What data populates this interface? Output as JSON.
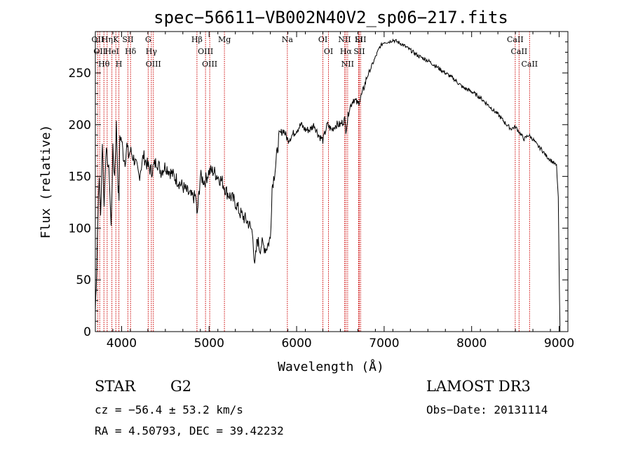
{
  "chart_data": {
    "type": "line",
    "title": "spec−56611−VB002N40V2_sp06−217.fits",
    "xlabel": "Wavelength (Å)",
    "ylabel": "Flux (relative)",
    "xlim": [
      3700,
      9100
    ],
    "ylim": [
      0,
      290
    ],
    "xticks": [
      4000,
      5000,
      6000,
      7000,
      8000,
      9000
    ],
    "yticks": [
      0,
      50,
      100,
      150,
      200,
      250
    ],
    "grid": false,
    "series": [
      {
        "x": [
          3700,
          3715,
          3730,
          3745,
          3760,
          3780,
          3800,
          3820,
          3840,
          3860,
          3880,
          3900,
          3920,
          3940,
          3960,
          3970,
          3980,
          4000,
          4020,
          4040,
          4060,
          4080,
          4100,
          4150,
          4200,
          4250,
          4300,
          4340,
          4400,
          4450,
          4500,
          4550,
          4600,
          4650,
          4700,
          4750,
          4800,
          4850,
          4861,
          4900,
          4950,
          5000,
          5050,
          5100,
          5150,
          5200,
          5250,
          5300,
          5350,
          5400,
          5450,
          5500,
          5520,
          5550,
          5580,
          5600,
          5650,
          5700,
          5720,
          5760,
          5800,
          5850,
          5900,
          5950,
          6000,
          6050,
          6100,
          6150,
          6200,
          6250,
          6300,
          6350,
          6400,
          6450,
          6500,
          6550,
          6563,
          6600,
          6650,
          6700,
          6750,
          6800,
          6850,
          6900,
          6950,
          7000,
          7050,
          7100,
          7150,
          7200,
          7250,
          7300,
          7400,
          7500,
          7600,
          7700,
          7800,
          7900,
          8000,
          8100,
          8200,
          8300,
          8400,
          8450,
          8500,
          8550,
          8600,
          8650,
          8700,
          8750,
          8800,
          8850,
          8900,
          8950,
          8970,
          8990,
          9000,
          9010
        ],
        "y": [
          20,
          60,
          115,
          150,
          110,
          185,
          120,
          175,
          165,
          150,
          100,
          175,
          150,
          200,
          140,
          130,
          190,
          185,
          170,
          165,
          180,
          170,
          175,
          165,
          150,
          170,
          160,
          155,
          165,
          155,
          160,
          155,
          150,
          145,
          140,
          135,
          130,
          130,
          110,
          150,
          145,
          155,
          155,
          150,
          145,
          135,
          130,
          125,
          115,
          110,
          105,
          95,
          60,
          90,
          80,
          85,
          80,
          90,
          140,
          160,
          190,
          195,
          185,
          190,
          195,
          200,
          195,
          195,
          200,
          190,
          185,
          200,
          195,
          200,
          200,
          205,
          195,
          215,
          225,
          220,
          230,
          245,
          255,
          265,
          275,
          280,
          280,
          282,
          280,
          278,
          275,
          272,
          266,
          262,
          256,
          250,
          244,
          236,
          232,
          226,
          218,
          210,
          200,
          196,
          198,
          192,
          186,
          190,
          186,
          180,
          176,
          170,
          166,
          162,
          160,
          130,
          60,
          0
        ]
      }
    ],
    "spectral_lines": [
      {
        "wavelength": 3727,
        "label": "OII"
      },
      {
        "wavelength": 3750,
        "label": "OII"
      },
      {
        "wavelength": 3798,
        "label": "Hθ"
      },
      {
        "wavelength": 3835,
        "label": "Hη"
      },
      {
        "wavelength": 3889,
        "label": "HeI"
      },
      {
        "wavelength": 3934,
        "label": "K"
      },
      {
        "wavelength": 3969,
        "label": "H"
      },
      {
        "wavelength": 4072,
        "label": "SII"
      },
      {
        "wavelength": 4102,
        "label": "Hδ"
      },
      {
        "wavelength": 4304,
        "label": "G"
      },
      {
        "wavelength": 4340,
        "label": "Hγ"
      },
      {
        "wavelength": 4363,
        "label": "OIII"
      },
      {
        "wavelength": 4861,
        "label": "Hβ"
      },
      {
        "wavelength": 4959,
        "label": "OIII"
      },
      {
        "wavelength": 5007,
        "label": "OIII"
      },
      {
        "wavelength": 5175,
        "label": "Mg"
      },
      {
        "wavelength": 5894,
        "label": "Na"
      },
      {
        "wavelength": 6300,
        "label": "OI"
      },
      {
        "wavelength": 6364,
        "label": "OI"
      },
      {
        "wavelength": 6548,
        "label": "NII"
      },
      {
        "wavelength": 6563,
        "label": "Hα"
      },
      {
        "wavelength": 6583,
        "label": "NII"
      },
      {
        "wavelength": 6708,
        "label": "Li"
      },
      {
        "wavelength": 6716,
        "label": "SII"
      },
      {
        "wavelength": 6731,
        "label": "SII"
      },
      {
        "wavelength": 8498,
        "label": "CaII"
      },
      {
        "wavelength": 8542,
        "label": "CaII"
      },
      {
        "wavelength": 8662,
        "label": "CaII"
      }
    ],
    "line_color": "#000000",
    "marker_color": "#cc0000"
  },
  "info": {
    "class_text": "STAR",
    "subclass_text": "G2",
    "survey_text": "LAMOST DR3",
    "cz_text": "cz = −56.4 ± 53.2 km/s",
    "obs_date_text": "Obs−Date: 20131114",
    "radec_text": "RA =   4.50793, DEC =  39.42232"
  }
}
